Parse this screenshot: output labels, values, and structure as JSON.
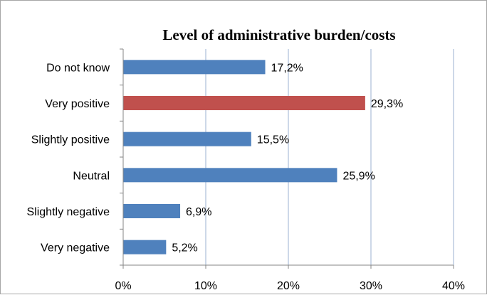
{
  "chart_data": {
    "type": "bar",
    "orientation": "horizontal",
    "title": "Level of administrative burden/costs",
    "xlabel": "",
    "ylabel": "",
    "categories": [
      "Do not know",
      "Very positive",
      "Slightly positive",
      "Neutral",
      "Slightly negative",
      "Very negative"
    ],
    "values": [
      17.2,
      29.3,
      15.5,
      25.9,
      6.9,
      5.2
    ],
    "data_labels": [
      "17,2%",
      "29,3%",
      "15,5%",
      "25,9%",
      "6,9%",
      "5,2%"
    ],
    "xlim": [
      0,
      40
    ],
    "x_ticks": [
      0,
      10,
      20,
      30,
      40
    ],
    "x_tick_labels": [
      "0%",
      "10%",
      "20%",
      "30%",
      "40%"
    ],
    "grid": "vertical",
    "legend": "none",
    "colors": {
      "default_bar": "#4f81bd",
      "highlight_bar": "#c0504d",
      "gridline": "#9bb0d1",
      "axis": "#868686"
    },
    "highlight_category": "Very positive"
  }
}
